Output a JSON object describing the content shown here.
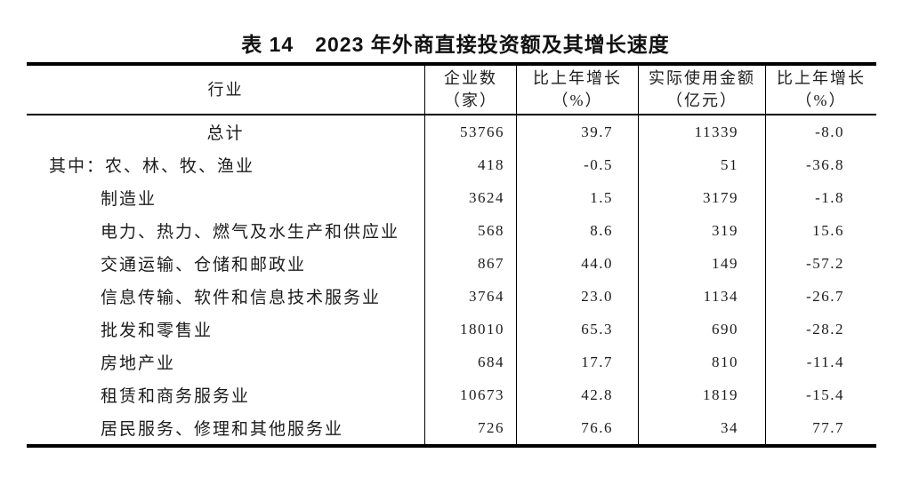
{
  "title": "表 14　2023 年外商直接投资额及其增长速度",
  "table": {
    "header": {
      "industry": "行业",
      "enterprises_l1": "企业数",
      "enterprises_l2": "（家）",
      "growth1_l1": "比上年增长",
      "growth1_l2": "（%）",
      "amount_l1": "实际使用金额",
      "amount_l2": "（亿元）",
      "growth2_l1": "比上年增长",
      "growth2_l2": "（%）"
    },
    "rows": [
      {
        "industry": "总计",
        "enterprises": "53766",
        "growth1": "39.7",
        "amount": "11339",
        "growth2": "-8.0"
      },
      {
        "industry": "其中：农、林、牧、渔业",
        "enterprises": "418",
        "growth1": "-0.5",
        "amount": "51",
        "growth2": "-36.8"
      },
      {
        "industry": "制造业",
        "enterprises": "3624",
        "growth1": "1.5",
        "amount": "3179",
        "growth2": "-1.8"
      },
      {
        "industry": "电力、热力、燃气及水生产和供应业",
        "enterprises": "568",
        "growth1": "8.6",
        "amount": "319",
        "growth2": "15.6"
      },
      {
        "industry": "交通运输、仓储和邮政业",
        "enterprises": "867",
        "growth1": "44.0",
        "amount": "149",
        "growth2": "-57.2"
      },
      {
        "industry": "信息传输、软件和信息技术服务业",
        "enterprises": "3764",
        "growth1": "23.0",
        "amount": "1134",
        "growth2": "-26.7"
      },
      {
        "industry": "批发和零售业",
        "enterprises": "18010",
        "growth1": "65.3",
        "amount": "690",
        "growth2": "-28.2"
      },
      {
        "industry": "房地产业",
        "enterprises": "684",
        "growth1": "17.7",
        "amount": "810",
        "growth2": "-11.4"
      },
      {
        "industry": "租赁和商务服务业",
        "enterprises": "10673",
        "growth1": "42.8",
        "amount": "1819",
        "growth2": "-15.4"
      },
      {
        "industry": "居民服务、修理和其他服务业",
        "enterprises": "726",
        "growth1": "76.6",
        "amount": "34",
        "growth2": "77.7"
      }
    ]
  },
  "chart_data": {
    "type": "table",
    "title": "表 14　2023 年外商直接投资额及其增长速度",
    "columns": [
      "行业",
      "企业数（家）",
      "比上年增长（%）",
      "实际使用金额（亿元）",
      "比上年增长（%）"
    ],
    "rows": [
      [
        "总计",
        53766,
        39.7,
        11339,
        -8.0
      ],
      [
        "其中：农、林、牧、渔业",
        418,
        -0.5,
        51,
        -36.8
      ],
      [
        "制造业",
        3624,
        1.5,
        3179,
        -1.8
      ],
      [
        "电力、热力、燃气及水生产和供应业",
        568,
        8.6,
        319,
        15.6
      ],
      [
        "交通运输、仓储和邮政业",
        867,
        44.0,
        149,
        -57.2
      ],
      [
        "信息传输、软件和信息技术服务业",
        3764,
        23.0,
        1134,
        -26.7
      ],
      [
        "批发和零售业",
        18010,
        65.3,
        690,
        -28.2
      ],
      [
        "房地产业",
        684,
        17.7,
        810,
        -11.4
      ],
      [
        "租赁和商务服务业",
        10673,
        42.8,
        1819,
        -15.4
      ],
      [
        "居民服务、修理和其他服务业",
        726,
        76.6,
        34,
        77.7
      ]
    ]
  }
}
